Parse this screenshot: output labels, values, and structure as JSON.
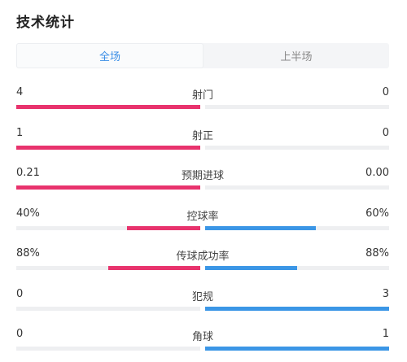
{
  "page": {
    "title": "技术统计"
  },
  "tabs": [
    {
      "label": "全场",
      "active": true
    },
    {
      "label": "上半场",
      "active": false
    }
  ],
  "colors": {
    "home": "#e8336d",
    "away": "#3b96e6",
    "track": "#eeeff1",
    "tab_active": "#3a8ee6"
  },
  "stats": [
    {
      "name": "射门",
      "left": "4",
      "right": "0",
      "left_share": 1.0,
      "right_share": 0.0
    },
    {
      "name": "射正",
      "left": "1",
      "right": "0",
      "left_share": 1.0,
      "right_share": 0.0
    },
    {
      "name": "预期进球",
      "left": "0.21",
      "right": "0.00",
      "left_share": 1.0,
      "right_share": 0.0
    },
    {
      "name": "控球率",
      "left": "40%",
      "right": "60%",
      "left_share": 0.4,
      "right_share": 0.6
    },
    {
      "name": "传球成功率",
      "left": "88%",
      "right": "88%",
      "left_share": 0.5,
      "right_share": 0.5
    },
    {
      "name": "犯规",
      "left": "0",
      "right": "3",
      "left_share": 0.0,
      "right_share": 1.0
    },
    {
      "name": "角球",
      "left": "0",
      "right": "1",
      "left_share": 0.0,
      "right_share": 1.0
    }
  ]
}
